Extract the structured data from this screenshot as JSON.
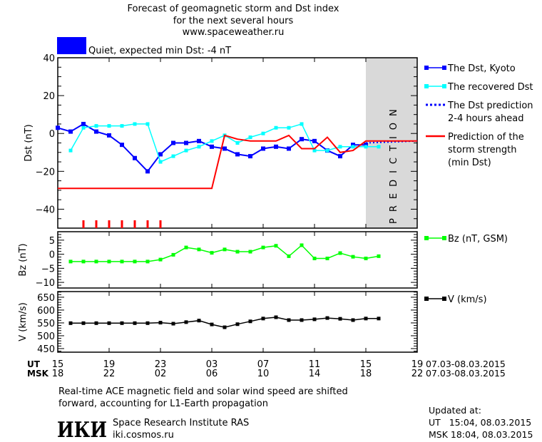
{
  "header": {
    "title_line1": "Forecast of geomagnetic storm and Dst index",
    "title_line2": "for the next several hours",
    "site": "www.spaceweather.ru",
    "status_text": "Quiet, expected min Dst: -4 nT",
    "status_color": "#0000ff"
  },
  "colors": {
    "dst_kyoto": "#0000ff",
    "recovered": "#00ffff",
    "prediction": "#0000ff",
    "storm": "#ff0000",
    "bz": "#00ff00",
    "v": "#000000",
    "prediction_zone": "#d9d9d9"
  },
  "prediction_label": "PREDICTION",
  "x_axis": {
    "ut_label": "UT",
    "msk_label": "MSK",
    "ut_ticks": [
      "15",
      "19",
      "23",
      "03",
      "07",
      "11",
      "15",
      "19"
    ],
    "msk_ticks": [
      "18",
      "22",
      "02",
      "06",
      "10",
      "14",
      "18",
      "22"
    ],
    "ut_range": "07.03-08.03.2015",
    "msk_range": "07.03-08.03.2015"
  },
  "chart_data": [
    {
      "type": "line",
      "ylabel": "Dst (nT)",
      "xlim": [
        15,
        43
      ],
      "ylim": [
        -50,
        40
      ],
      "yticks": [
        40,
        20,
        0,
        -20,
        -40
      ],
      "prediction_zone": [
        39,
        43
      ],
      "legend_placement": "right",
      "series": [
        {
          "name": "The Dst, Kyoto",
          "key": "dst_kyoto",
          "x_start": 15,
          "values": [
            3,
            1,
            5,
            1,
            -1,
            -6,
            -13,
            -20,
            -11,
            -5,
            -5,
            -4,
            -7,
            -8,
            -11,
            -12,
            -8,
            -7,
            -8,
            -3,
            -4,
            -9,
            -12,
            -6,
            -6
          ]
        },
        {
          "name": "The recovered Dst",
          "key": "recovered",
          "x_start": 16,
          "values": [
            -9,
            3,
            4,
            4,
            4,
            5,
            5,
            -15,
            -12,
            -9,
            -7,
            -4,
            -1,
            -5,
            -2,
            0,
            3,
            3,
            5,
            -9,
            -9,
            -7,
            -7,
            -7,
            -7
          ]
        },
        {
          "name": "The Dst prediction 2-4 hours ahead",
          "key": "prediction",
          "points": [
            [
              39,
              -5
            ],
            [
              43,
              -4
            ]
          ]
        },
        {
          "name": "Prediction of the storm strength (min Dst)",
          "key": "storm",
          "points": [
            [
              15,
              -29
            ],
            [
              27,
              -29
            ],
            [
              28,
              -1
            ],
            [
              29,
              -3
            ],
            [
              30,
              -4
            ],
            [
              32,
              -4
            ],
            [
              33,
              -1
            ],
            [
              34,
              -8
            ],
            [
              35,
              -8
            ],
            [
              36,
              -2
            ],
            [
              37,
              -10
            ],
            [
              38,
              -9
            ],
            [
              39,
              -4
            ],
            [
              43,
              -4
            ]
          ]
        }
      ],
      "markers_hours": [
        17,
        18,
        19,
        20,
        21,
        22,
        23
      ],
      "legend_lines": {
        "dst_kyoto": [
          "The Dst, Kyoto"
        ],
        "recovered": [
          "The recovered Dst"
        ],
        "prediction": [
          "The Dst prediction",
          "2-4 hours ahead"
        ],
        "storm": [
          "Prediction of the",
          "storm strength",
          "(min Dst)"
        ]
      }
    },
    {
      "type": "line",
      "ylabel": "Bz (nT)",
      "xlim": [
        15,
        43
      ],
      "ylim": [
        -12,
        8
      ],
      "yticks": [
        5,
        0,
        -5,
        -10
      ],
      "series": [
        {
          "name": "Bz (nT, GSM)",
          "key": "bz",
          "x_start": 16,
          "values": [
            -2.6,
            -2.6,
            -2.6,
            -2.6,
            -2.6,
            -2.6,
            -2.6,
            -1.9,
            -0.2,
            2.4,
            1.7,
            0.5,
            1.7,
            0.9,
            0.9,
            2.4,
            3.0,
            -0.7,
            3.2,
            -1.5,
            -1.5,
            0.4,
            -0.9,
            -1.5,
            -0.7
          ]
        }
      ]
    },
    {
      "type": "line",
      "ylabel": "V (km/s)",
      "xlim": [
        15,
        43
      ],
      "ylim": [
        436,
        672
      ],
      "yticks": [
        650,
        600,
        550,
        500,
        450
      ],
      "series": [
        {
          "name": "V (km/s)",
          "key": "v",
          "x_start": 16,
          "values": [
            549,
            549,
            549,
            549,
            549,
            549,
            549,
            551,
            547,
            553,
            559,
            544,
            533,
            545,
            556,
            567,
            572,
            561,
            561,
            564,
            569,
            566,
            561,
            567,
            567
          ]
        }
      ]
    }
  ],
  "footer": {
    "note_line1": "Real-time ACE magnetic field and solar wind speed are shifted",
    "note_line2": "forward, accounting for L1-Earth propagation",
    "logo_text": "ИКИ",
    "institute": "Space Research Institute RAS",
    "institute_site": "iki.cosmos.ru",
    "updated_label": "Updated at:",
    "updated_ut": "UT   15:04, 08.03.2015",
    "updated_msk": "MSK 18:04, 08.03.2015"
  }
}
